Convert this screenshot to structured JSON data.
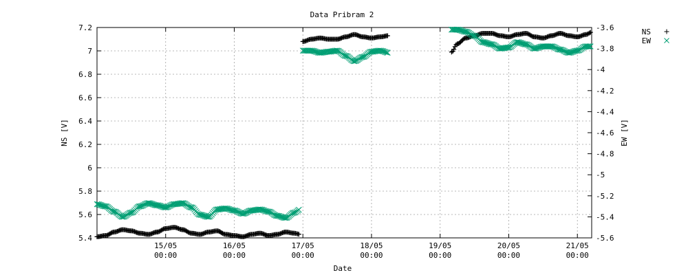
{
  "chart_data": {
    "type": "scatter",
    "title": "Data Pribram 2",
    "xlabel": "Date",
    "ylabel": "NS [V]",
    "y2label": "EW [V]",
    "xlim": [
      "2010-05-14T00:00",
      "2010-05-21T05:00"
    ],
    "ylim": [
      5.4,
      7.2
    ],
    "y2lim": [
      -5.6,
      -3.6
    ],
    "x_ticks": [
      {
        "day": "15/05",
        "time": "00:00"
      },
      {
        "day": "16/05",
        "time": "00:00"
      },
      {
        "day": "17/05",
        "time": "00:00"
      },
      {
        "day": "18/05",
        "time": "00:00"
      },
      {
        "day": "19/05",
        "time": "00:00"
      },
      {
        "day": "20/05",
        "time": "00:00"
      },
      {
        "day": "21/05",
        "time": "00:00"
      }
    ],
    "y_ticks": [
      "5.4",
      "5.6",
      "5.8",
      "6",
      "6.2",
      "6.4",
      "6.6",
      "6.8",
      "7",
      "7.2"
    ],
    "y2_ticks": [
      "-5.6",
      "-5.4",
      "-5.2",
      "-5",
      "-4.8",
      "-4.6",
      "-4.4",
      "-4.2",
      "-4",
      "-3.8",
      "-3.6"
    ],
    "grid": true,
    "legend_position": "top-right outside",
    "series": [
      {
        "name": "NS",
        "axis": "left",
        "marker": "plus",
        "color": "#000000",
        "segments": [
          {
            "x": [
              "2010-05-14T00:00",
              "2010-05-14T03:00",
              "2010-05-14T06:00",
              "2010-05-14T09:00",
              "2010-05-14T12:00",
              "2010-05-14T15:00",
              "2010-05-14T18:00",
              "2010-05-14T21:00",
              "2010-05-15T00:00",
              "2010-05-15T03:00",
              "2010-05-15T06:00",
              "2010-05-15T09:00",
              "2010-05-15T12:00",
              "2010-05-15T15:00",
              "2010-05-15T18:00",
              "2010-05-15T21:00",
              "2010-05-16T00:00",
              "2010-05-16T03:00",
              "2010-05-16T06:00",
              "2010-05-16T09:00",
              "2010-05-16T12:00",
              "2010-05-16T15:00",
              "2010-05-16T18:00",
              "2010-05-16T21:00",
              "2010-05-16T23:00"
            ],
            "y": [
              5.41,
              5.42,
              5.45,
              5.47,
              5.46,
              5.44,
              5.43,
              5.45,
              5.48,
              5.49,
              5.47,
              5.44,
              5.43,
              5.45,
              5.46,
              5.43,
              5.42,
              5.41,
              5.43,
              5.44,
              5.42,
              5.43,
              5.45,
              5.44,
              5.43
            ]
          },
          {
            "x": [
              "2010-05-17T00:00",
              "2010-05-17T03:00",
              "2010-05-17T06:00",
              "2010-05-17T09:00",
              "2010-05-17T12:00",
              "2010-05-17T15:00",
              "2010-05-17T18:00",
              "2010-05-17T21:00",
              "2010-05-18T00:00",
              "2010-05-18T03:00",
              "2010-05-18T06:00"
            ],
            "y": [
              7.08,
              7.1,
              7.11,
              7.1,
              7.1,
              7.12,
              7.14,
              7.12,
              7.11,
              7.12,
              7.13
            ]
          },
          {
            "x": [
              "2010-05-19T04:00",
              "2010-05-19T06:00",
              "2010-05-19T09:00",
              "2010-05-19T12:00",
              "2010-05-19T15:00",
              "2010-05-19T18:00",
              "2010-05-19T21:00",
              "2010-05-20T00:00",
              "2010-05-20T03:00",
              "2010-05-20T06:00",
              "2010-05-20T09:00",
              "2010-05-20T12:00",
              "2010-05-20T15:00",
              "2010-05-20T18:00",
              "2010-05-20T21:00",
              "2010-05-21T00:00",
              "2010-05-21T03:00",
              "2010-05-21T05:00"
            ],
            "y": [
              6.99,
              7.06,
              7.11,
              7.13,
              7.15,
              7.15,
              7.13,
              7.12,
              7.14,
              7.15,
              7.12,
              7.11,
              7.13,
              7.15,
              7.13,
              7.12,
              7.14,
              7.16
            ]
          }
        ]
      },
      {
        "name": "EW",
        "axis": "right",
        "marker": "cross",
        "color": "#009e73",
        "segments": [
          {
            "x": [
              "2010-05-14T00:00",
              "2010-05-14T03:00",
              "2010-05-14T06:00",
              "2010-05-14T09:00",
              "2010-05-14T12:00",
              "2010-05-14T15:00",
              "2010-05-14T18:00",
              "2010-05-14T21:00",
              "2010-05-15T00:00",
              "2010-05-15T03:00",
              "2010-05-15T06:00",
              "2010-05-15T09:00",
              "2010-05-15T12:00",
              "2010-05-15T15:00",
              "2010-05-15T18:00",
              "2010-05-15T21:00",
              "2010-05-16T00:00",
              "2010-05-16T03:00",
              "2010-05-16T06:00",
              "2010-05-16T09:00",
              "2010-05-16T12:00",
              "2010-05-16T15:00",
              "2010-05-16T18:00",
              "2010-05-16T21:00",
              "2010-05-16T23:00"
            ],
            "y": [
              -5.28,
              -5.3,
              -5.35,
              -5.4,
              -5.36,
              -5.3,
              -5.27,
              -5.29,
              -5.31,
              -5.28,
              -5.27,
              -5.31,
              -5.38,
              -5.4,
              -5.33,
              -5.32,
              -5.34,
              -5.37,
              -5.34,
              -5.33,
              -5.35,
              -5.39,
              -5.41,
              -5.36,
              -5.33
            ]
          },
          {
            "x": [
              "2010-05-17T00:00",
              "2010-05-17T03:00",
              "2010-05-17T06:00",
              "2010-05-17T09:00",
              "2010-05-17T12:00",
              "2010-05-17T15:00",
              "2010-05-17T18:00",
              "2010-05-17T21:00",
              "2010-05-18T00:00",
              "2010-05-18T03:00",
              "2010-05-18T06:00"
            ],
            "y": [
              -3.82,
              -3.82,
              -3.84,
              -3.83,
              -3.82,
              -3.87,
              -3.92,
              -3.88,
              -3.83,
              -3.82,
              -3.84
            ]
          },
          {
            "x": [
              "2010-05-19T04:00",
              "2010-05-19T06:00",
              "2010-05-19T09:00",
              "2010-05-19T12:00",
              "2010-05-19T15:00",
              "2010-05-19T18:00",
              "2010-05-19T21:00",
              "2010-05-20T00:00",
              "2010-05-20T03:00",
              "2010-05-20T06:00",
              "2010-05-20T09:00",
              "2010-05-20T12:00",
              "2010-05-20T15:00",
              "2010-05-20T18:00",
              "2010-05-20T21:00",
              "2010-05-21T00:00",
              "2010-05-21T03:00",
              "2010-05-21T05:00"
            ],
            "y": [
              -3.62,
              -3.62,
              -3.64,
              -3.68,
              -3.74,
              -3.76,
              -3.8,
              -3.79,
              -3.74,
              -3.76,
              -3.8,
              -3.78,
              -3.78,
              -3.81,
              -3.84,
              -3.82,
              -3.78,
              -3.78
            ]
          }
        ]
      }
    ]
  }
}
